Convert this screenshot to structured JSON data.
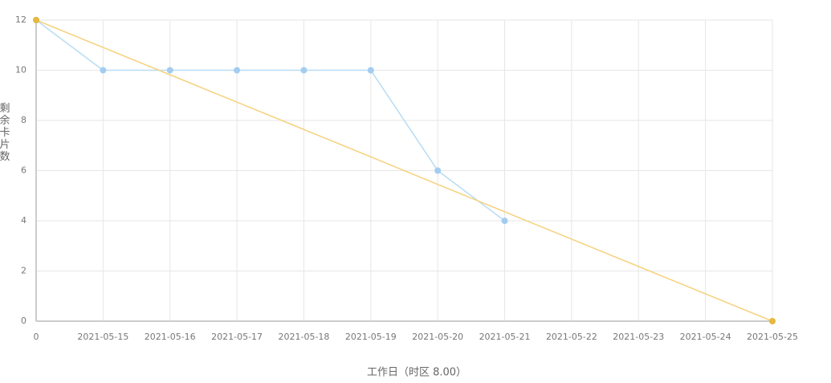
{
  "chart_data": {
    "type": "line",
    "x_label": "工作日（时区 8.00）",
    "y_label": "剩余卡片数",
    "categories": [
      "0",
      "2021-05-15",
      "2021-05-16",
      "2021-05-17",
      "2021-05-18",
      "2021-05-19",
      "2021-05-20",
      "2021-05-21",
      "2021-05-22",
      "2021-05-23",
      "2021-05-24",
      "2021-05-25"
    ],
    "series": [
      {
        "color": "#b8dcf5",
        "marker_color": "#a3cdf0",
        "values": [
          12,
          10,
          10,
          10,
          10,
          10,
          6,
          4,
          null,
          null,
          null,
          null
        ]
      },
      {
        "color": "#f5d27e",
        "marker_color": "#e6b83c",
        "values": [
          12,
          10.91,
          9.82,
          8.73,
          7.64,
          6.55,
          5.45,
          4.36,
          3.27,
          2.18,
          1.09,
          0
        ]
      }
    ],
    "ylim": [
      0,
      12
    ],
    "yticks": [
      0,
      2,
      4,
      6,
      8,
      10,
      12
    ],
    "grid": true
  }
}
